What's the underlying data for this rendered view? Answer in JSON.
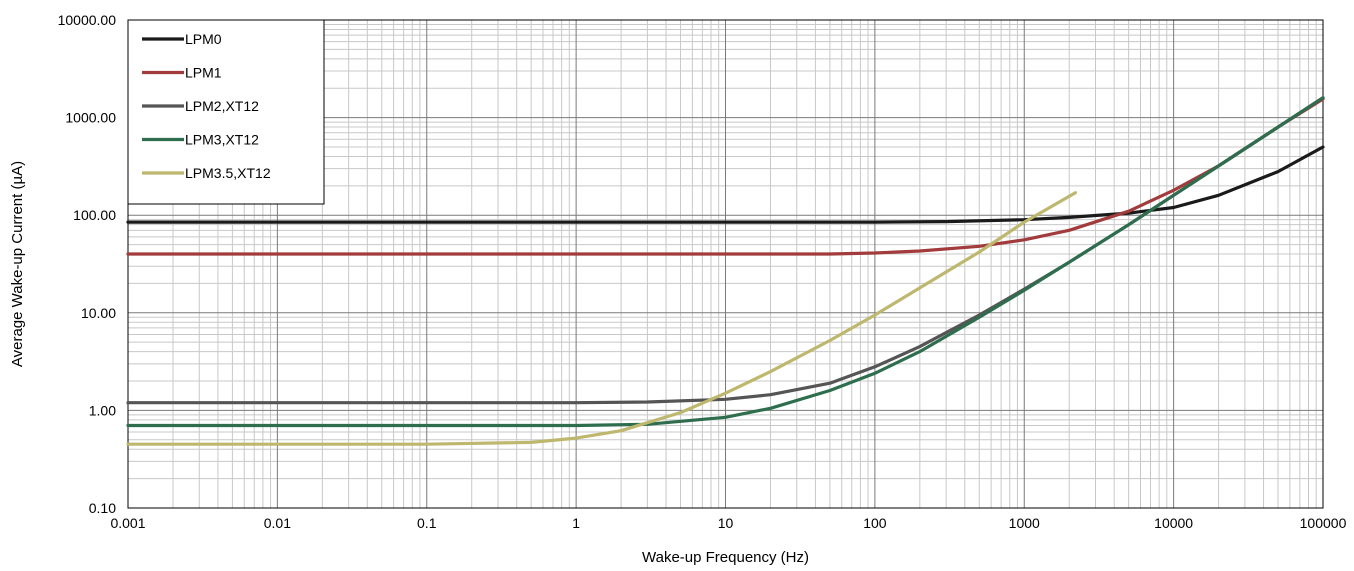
{
  "chart_data": {
    "type": "line",
    "title": "",
    "xlabel": "Wake-up Frequency (Hz)",
    "ylabel": "Average Wake-up Current (µA)",
    "xscale": "log",
    "yscale": "log",
    "xlim": [
      0.001,
      100000
    ],
    "ylim": [
      0.1,
      10000
    ],
    "x_tick_labels": [
      "0.001",
      "0.01",
      "0.1",
      "1",
      "10",
      "100",
      "1000",
      "10000",
      "100000"
    ],
    "y_tick_labels": [
      "0.10",
      "1.00",
      "10.00",
      "100.00",
      "1000.00",
      "10000.00"
    ],
    "grid": "major and minor, log decades",
    "legend_position": "top-left",
    "series": [
      {
        "name": "LPM0",
        "color": "#1a1a1a",
        "x": [
          0.001,
          0.01,
          0.1,
          1,
          10,
          100,
          300,
          1000,
          2000,
          5000,
          10000,
          20000,
          50000,
          100000
        ],
        "y": [
          85,
          85,
          85,
          85,
          85,
          85,
          86,
          90,
          95,
          105,
          120,
          160,
          280,
          500
        ]
      },
      {
        "name": "LPM1",
        "color": "#a23b3b",
        "x": [
          0.001,
          0.01,
          0.1,
          1,
          10,
          50,
          100,
          200,
          500,
          1000,
          2000,
          5000,
          10000,
          20000,
          50000,
          100000
        ],
        "y": [
          40,
          40,
          40,
          40,
          40,
          40,
          41,
          43,
          48,
          56,
          70,
          110,
          180,
          320,
          800,
          1550
        ]
      },
      {
        "name": "LPM2,XT12",
        "color": "#555555",
        "x": [
          0.001,
          0.01,
          0.1,
          1,
          3,
          10,
          20,
          50,
          100,
          200,
          500,
          1000,
          2000,
          5000,
          10000,
          20000,
          50000,
          100000
        ],
        "y": [
          1.2,
          1.2,
          1.2,
          1.2,
          1.22,
          1.3,
          1.45,
          1.9,
          2.8,
          4.5,
          9.5,
          17.5,
          33,
          80,
          160,
          320,
          800,
          1600
        ]
      },
      {
        "name": "LPM3,XT12",
        "color": "#2e6e4e",
        "x": [
          0.001,
          0.01,
          0.1,
          1,
          3,
          10,
          20,
          50,
          100,
          200,
          500,
          1000,
          2000,
          5000,
          10000,
          20000,
          50000,
          100000
        ],
        "y": [
          0.7,
          0.7,
          0.7,
          0.7,
          0.72,
          0.85,
          1.05,
          1.6,
          2.4,
          4.0,
          9.0,
          17,
          33,
          80,
          160,
          320,
          800,
          1600
        ]
      },
      {
        "name": "LPM3.5,XT12",
        "color": "#bdb86e",
        "x": [
          0.001,
          0.01,
          0.1,
          0.5,
          1,
          2,
          5,
          10,
          20,
          50,
          100,
          200,
          500,
          1000,
          2200
        ],
        "y": [
          0.45,
          0.45,
          0.45,
          0.47,
          0.52,
          0.62,
          0.95,
          1.5,
          2.5,
          5.2,
          9.5,
          18,
          42,
          85,
          170
        ]
      }
    ]
  }
}
